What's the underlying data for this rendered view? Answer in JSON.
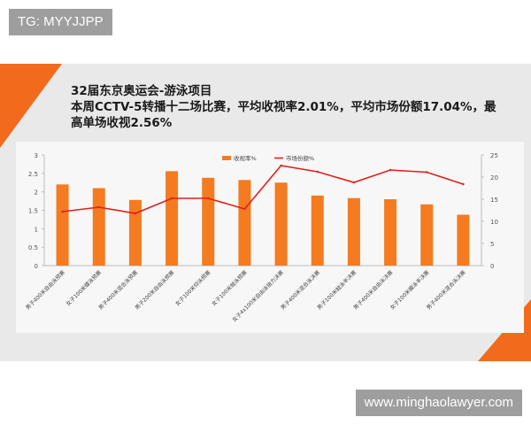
{
  "top_tag": "TG: MYYJJPP",
  "watermark": "www.minghaolawyer.com",
  "headline": {
    "line1": "32届东京奥运会-游泳项目",
    "line2": "本周CCTV-5转播十二场比赛，平均收视率2.01%，平均市场份额17.04%，最",
    "line3": "高单场收视2.56%"
  },
  "colors": {
    "bar": "#f47b20",
    "line": "#e0201b",
    "accent": "#f26b1d"
  },
  "chart_data": {
    "type": "bar",
    "title": "",
    "categories": [
      "男子400米自由泳预赛",
      "女子100米蝶泳预赛",
      "男子400米混合泳预赛",
      "男子200米自由泳预赛",
      "女子100米仰泳预赛",
      "女子100米蛙泳预赛",
      "女子4x100米自由泳接力决赛",
      "男子400米混合泳决赛",
      "男子100米蛙泳半决赛",
      "男子400米自由泳决赛",
      "女子100米蝶泳半决赛",
      "男子400米混合泳决赛"
    ],
    "series": [
      {
        "name": "收视率%",
        "type": "bar",
        "axis": "left",
        "values": [
          2.2,
          2.1,
          1.78,
          2.56,
          2.38,
          2.32,
          2.25,
          1.9,
          1.83,
          1.8,
          1.66,
          1.38
        ]
      },
      {
        "name": "市场份额%",
        "type": "line",
        "axis": "right",
        "values": [
          12.2,
          13.2,
          11.8,
          15.2,
          15.2,
          12.8,
          22.6,
          21.2,
          18.8,
          21.6,
          21.1,
          18.4
        ]
      }
    ],
    "ylim_left": [
      0,
      3
    ],
    "yticks_left": [
      "0",
      "0.5",
      "1",
      "1.5",
      "2",
      "2.5",
      "3"
    ],
    "ylim_right": [
      0,
      25
    ],
    "yticks_right": [
      "0",
      "5",
      "10",
      "15",
      "20",
      "25"
    ],
    "legend_position": "top-center",
    "grid": false
  }
}
